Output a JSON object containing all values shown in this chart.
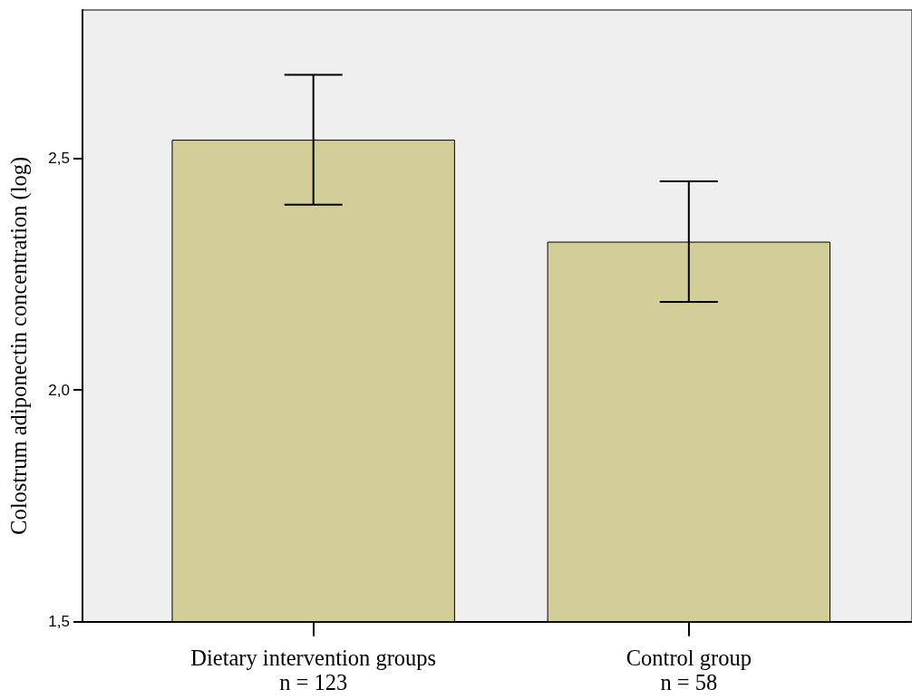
{
  "chart_data": {
    "type": "bar",
    "ylabel": "Colostrum adiponectin concentration (log)",
    "categories": [
      "Dietary intervention groups\nn = 123",
      "Control group\nn = 58"
    ],
    "values": [
      2.54,
      2.32
    ],
    "errors": [
      [
        2.4,
        2.68
      ],
      [
        2.19,
        2.45
      ]
    ],
    "color": "#d3cd97",
    "ylim": [
      1.5,
      2.82
    ],
    "yticks": [
      {
        "value": 1.5,
        "label": "1,5"
      },
      {
        "value": 2,
        "label": "2,0"
      },
      {
        "value": 2.5,
        "label": "2,5"
      }
    ]
  }
}
